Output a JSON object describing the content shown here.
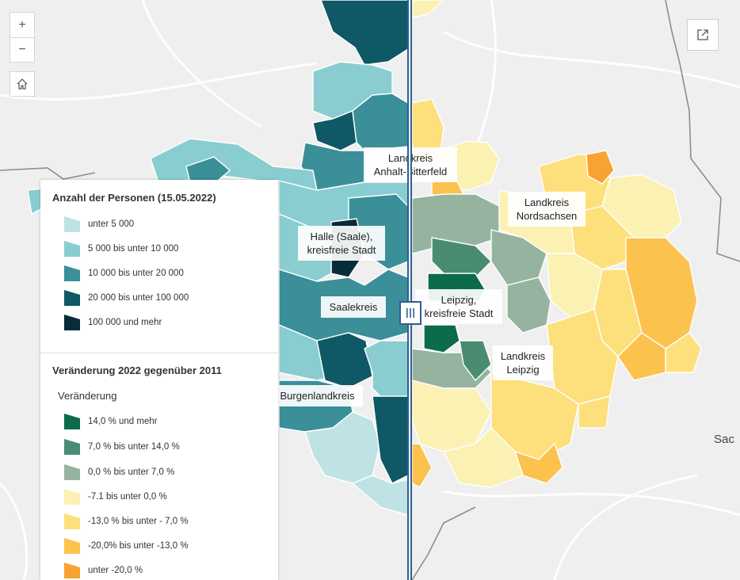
{
  "map_controls": {
    "zoom_in": "+",
    "zoom_out": "−"
  },
  "labels": {
    "anhalt_bitterfeld": [
      "Landkreis",
      "Anhalt-Bitterfeld"
    ],
    "nordsachsen": [
      "Landkreis",
      "Nordsachsen"
    ],
    "halle": [
      "Halle (Saale),",
      "kreisfreie Stadt"
    ],
    "saalekreis": [
      "Saalekreis"
    ],
    "leipzig_stadt": [
      "Leipzig,",
      "kreisfreie Stadt"
    ],
    "landkreis_leipzig": [
      "Landkreis",
      "Leipzig"
    ],
    "burgenlandkreis": [
      "Burgenlandkreis"
    ],
    "edge_city": "Sac"
  },
  "legend": {
    "section1": {
      "title": "Anzahl der Personen (15.05.2022)",
      "items": [
        {
          "label": "unter 5 000",
          "color": "#bfe3e5"
        },
        {
          "label": "5 000 bis unter 10 000",
          "color": "#8acdd0"
        },
        {
          "label": "10 000 bis unter 20 000",
          "color": "#3a8f99"
        },
        {
          "label": "20 000 bis unter 100 000",
          "color": "#0f5865"
        },
        {
          "label": "100 000 und mehr",
          "color": "#082c38"
        }
      ]
    },
    "section2": {
      "title": "Veränderung 2022 gegenüber 2011",
      "subtitle": "Veränderung",
      "items": [
        {
          "label": "14,0 % und mehr",
          "color": "#0b6b4c"
        },
        {
          "label": "7,0 % bis unter 14,0 %",
          "color": "#4a8c72"
        },
        {
          "label": "0,0 % bis unter 7,0 %",
          "color": "#96b3a0"
        },
        {
          "label": "-7.1 bis unter 0,0 %",
          "color": "#fbf1b3"
        },
        {
          "label": "-13,0 % bis unter - 7,0 %",
          "color": "#fde07b"
        },
        {
          "label": "-20,0% bis unter -13,0 %",
          "color": "#fcc24e"
        },
        {
          "label": "unter -20,0 %",
          "color": "#f8a331"
        }
      ]
    }
  }
}
